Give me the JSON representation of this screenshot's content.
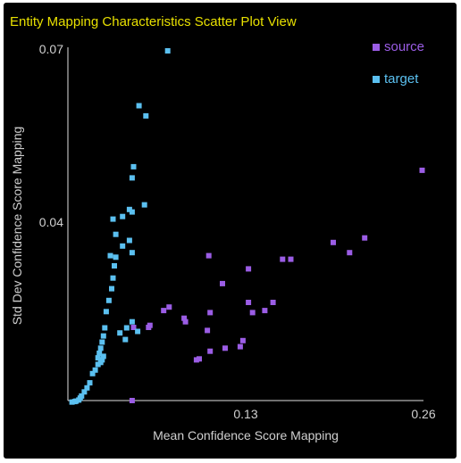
{
  "chart_data": {
    "type": "scatter",
    "title": "Entity Mapping Characteristics Scatter Plot View",
    "xlabel": "Mean Confidence Score Mapping",
    "ylabel": "Std Dev Confidence Score Mapping",
    "xlim": [
      0,
      0.26
    ],
    "ylim": [
      0.0005,
      0.07
    ],
    "x_ticks": [
      "0.13",
      "0.26"
    ],
    "y_ticks": [
      "0.04",
      "0.07"
    ],
    "legend": {
      "placement": "top-right"
    },
    "grid": false,
    "series": [
      {
        "name": "source",
        "color": "#9b5de5",
        "points": [
          [
            0.259,
            0.0458
          ],
          [
            0.217,
            0.0325
          ],
          [
            0.194,
            0.0316
          ],
          [
            0.206,
            0.0296
          ],
          [
            0.163,
            0.0283
          ],
          [
            0.157,
            0.0283
          ],
          [
            0.103,
            0.029
          ],
          [
            0.132,
            0.0264
          ],
          [
            0.113,
            0.0235
          ],
          [
            0.132,
            0.0198
          ],
          [
            0.15,
            0.0198
          ],
          [
            0.144,
            0.0182
          ],
          [
            0.135,
            0.0178
          ],
          [
            0.104,
            0.0178
          ],
          [
            0.074,
            0.0189
          ],
          [
            0.07,
            0.0182
          ],
          [
            0.085,
            0.0167
          ],
          [
            0.086,
            0.016
          ],
          [
            0.06,
            0.0153
          ],
          [
            0.059,
            0.0149
          ],
          [
            0.048,
            0.0149
          ],
          [
            0.102,
            0.0143
          ],
          [
            0.128,
            0.0123
          ],
          [
            0.126,
            0.0111
          ],
          [
            0.115,
            0.0108
          ],
          [
            0.104,
            0.0102
          ],
          [
            0.096,
            0.0087
          ],
          [
            0.094,
            0.0085
          ],
          [
            0.047,
            0.0005
          ]
        ]
      },
      {
        "name": "target",
        "color": "#5bc0f0",
        "points": [
          [
            0.073,
            0.0693
          ],
          [
            0.052,
            0.0585
          ],
          [
            0.057,
            0.0565
          ],
          [
            0.048,
            0.0465
          ],
          [
            0.047,
            0.0443
          ],
          [
            0.056,
            0.039
          ],
          [
            0.047,
            0.0376
          ],
          [
            0.045,
            0.0381
          ],
          [
            0.033,
            0.0362
          ],
          [
            0.04,
            0.0367
          ],
          [
            0.035,
            0.0332
          ],
          [
            0.045,
            0.032
          ],
          [
            0.04,
            0.0309
          ],
          [
            0.047,
            0.0296
          ],
          [
            0.031,
            0.029
          ],
          [
            0.035,
            0.0287
          ],
          [
            0.034,
            0.027
          ],
          [
            0.033,
            0.0246
          ],
          [
            0.032,
            0.0225
          ],
          [
            0.03,
            0.0202
          ],
          [
            0.028,
            0.018
          ],
          [
            0.047,
            0.016
          ],
          [
            0.051,
            0.0141
          ],
          [
            0.043,
            0.0148
          ],
          [
            0.042,
            0.0125
          ],
          [
            0.038,
            0.0138
          ],
          [
            0.027,
            0.0148
          ],
          [
            0.026,
            0.0132
          ],
          [
            0.025,
            0.012
          ],
          [
            0.024,
            0.0108
          ],
          [
            0.023,
            0.0098
          ],
          [
            0.026,
            0.0092
          ],
          [
            0.025,
            0.0085
          ],
          [
            0.024,
            0.008
          ],
          [
            0.022,
            0.0089
          ],
          [
            0.022,
            0.0076
          ],
          [
            0.02,
            0.0065
          ],
          [
            0.018,
            0.0058
          ],
          [
            0.016,
            0.004
          ],
          [
            0.014,
            0.003
          ],
          [
            0.012,
            0.0022
          ],
          [
            0.01,
            0.0014
          ],
          [
            0.009,
            0.001
          ],
          [
            0.008,
            0.0006
          ],
          [
            0.006,
            0.0004
          ],
          [
            0.005,
            0.0003
          ],
          [
            0.003,
            0.0002
          ]
        ]
      }
    ]
  }
}
